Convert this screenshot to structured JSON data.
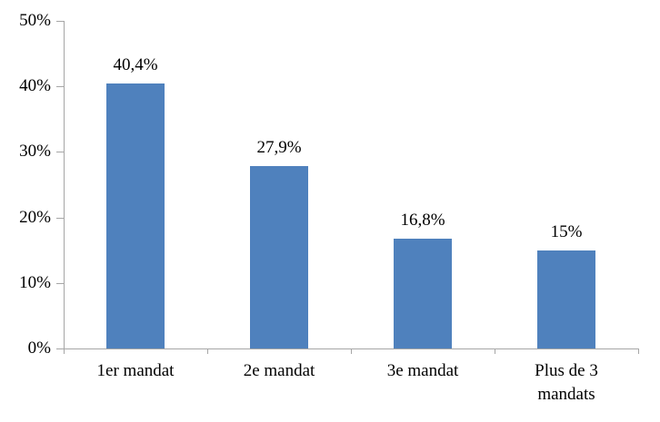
{
  "chart_data": {
    "type": "bar",
    "categories": [
      "1er mandat",
      "2e mandat",
      "3e mandat",
      "Plus de 3 mandats"
    ],
    "values": [
      40.4,
      27.9,
      16.8,
      15
    ],
    "value_labels": [
      "40,4%",
      "27,9%",
      "16,8%",
      "15%"
    ],
    "y_ticks": [
      "0%",
      "10%",
      "20%",
      "30%",
      "40%",
      "50%"
    ],
    "y_tick_values": [
      0,
      10,
      20,
      30,
      40,
      50
    ],
    "ylim": [
      0,
      50
    ],
    "title": "",
    "xlabel": "",
    "ylabel": "",
    "grid": false,
    "legend": false,
    "bar_color": "#4F81BD",
    "axis_color": "#A6A6A6",
    "text_color": "#000000"
  }
}
